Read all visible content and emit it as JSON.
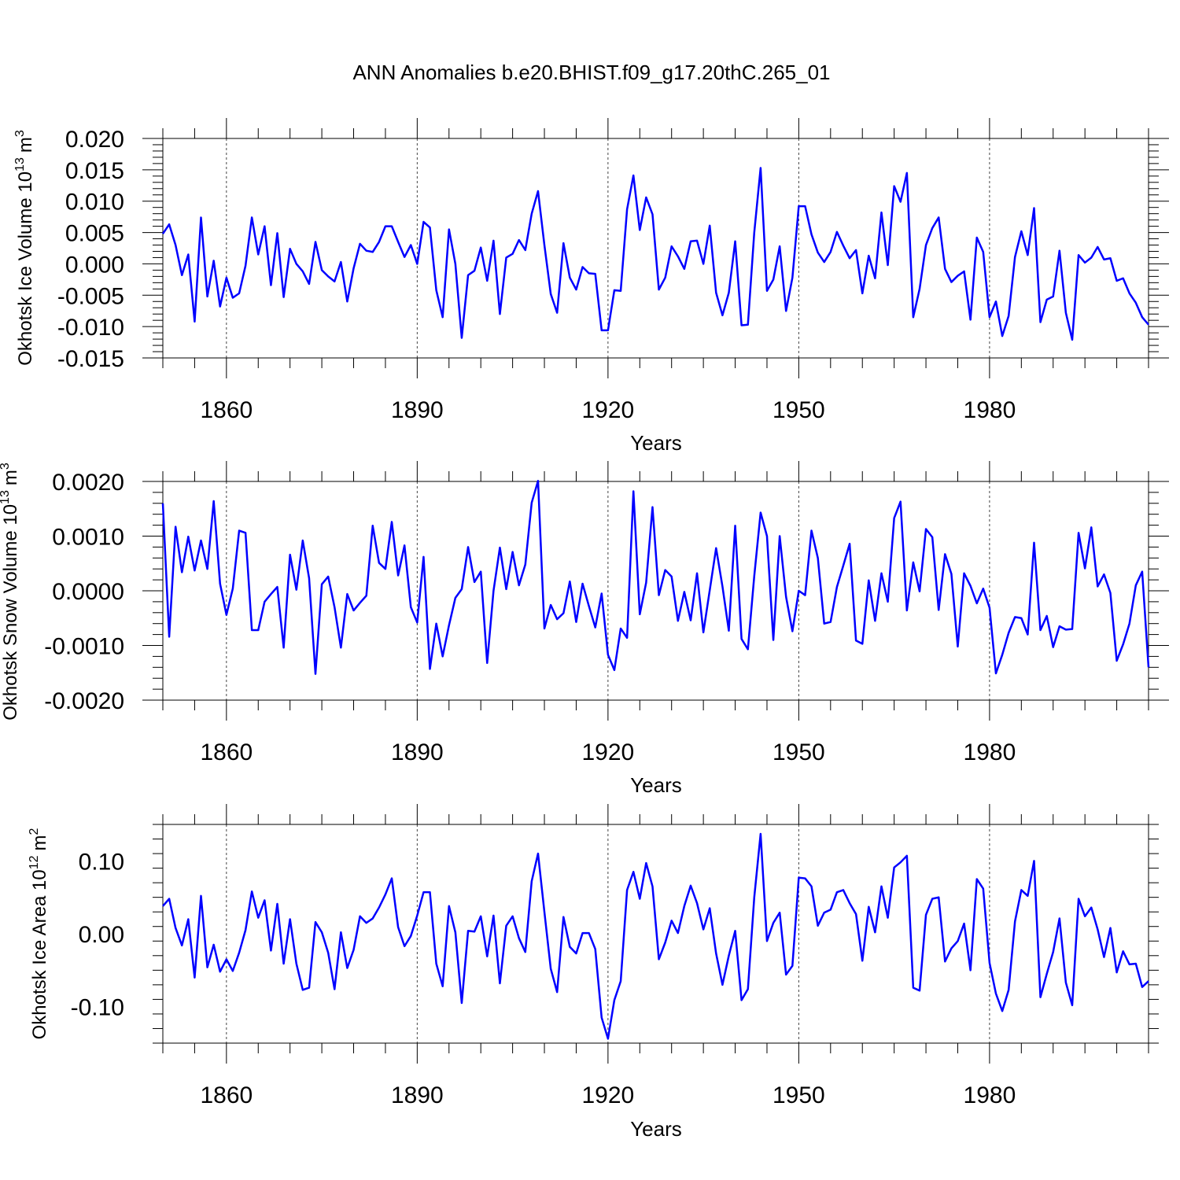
{
  "title": "ANN Anomalies b.e20.BHIST.f09_g17.20thC.265_01",
  "line_color": "#0000ff",
  "chart_data": [
    {
      "type": "line",
      "ylabel": "Okhotsk Ice Volume 10",
      "yunit_exp": "13",
      "yunit": "m",
      "yunit_pow": "3",
      "xlabel": "Years",
      "xlim": [
        1850,
        2005
      ],
      "ylim": [
        -0.015,
        0.02
      ],
      "ytick_values": [
        -0.015,
        -0.01,
        -0.005,
        0.0,
        0.005,
        0.01,
        0.015,
        0.02
      ],
      "ytick_labels": [
        "-0.015",
        "-0.010",
        "-0.005",
        "0.000",
        "0.005",
        "0.010",
        "0.015",
        "0.020"
      ],
      "xtick_values": [
        1860,
        1890,
        1920,
        1950,
        1980
      ],
      "xtick_labels": [
        "1860",
        "1890",
        "1920",
        "1950",
        "1980"
      ],
      "grid": "dashed vertical at major x ticks",
      "series": [
        {
          "name": "Okhotsk Ice Volume",
          "x_start": 1850,
          "values": [
            0.0048,
            0.0063,
            0.003,
            -0.0018,
            0.0015,
            -0.0092,
            0.0074,
            -0.0052,
            0.0005,
            -0.0068,
            -0.0022,
            -0.0054,
            -0.0047,
            -0.0003,
            0.0074,
            0.0015,
            0.006,
            -0.0034,
            0.0049,
            -0.0053,
            0.0024,
            0.0,
            -0.0012,
            -0.0032,
            0.0035,
            -0.001,
            -0.002,
            -0.0028,
            0.0003,
            -0.006,
            -0.0007,
            0.0032,
            0.0021,
            0.0019,
            0.0035,
            0.006,
            0.006,
            0.0035,
            0.0011,
            0.003,
            0.0,
            0.0067,
            0.0058,
            -0.0042,
            -0.0085,
            0.0055,
            0.0,
            -0.0118,
            -0.0018,
            -0.0011,
            0.0026,
            -0.0027,
            0.0037,
            -0.008,
            0.001,
            0.0016,
            0.0038,
            0.0022,
            0.008,
            0.0116,
            0.003,
            -0.0048,
            -0.0078,
            0.0033,
            -0.0022,
            -0.0041,
            -0.0005,
            -0.0015,
            -0.0016,
            -0.0106,
            -0.0106,
            -0.0042,
            -0.0043,
            0.0087,
            0.0141,
            0.0054,
            0.0106,
            0.0079,
            -0.0041,
            -0.0022,
            0.0028,
            0.0012,
            -0.0008,
            0.0036,
            0.0037,
            0.0,
            0.0061,
            -0.0046,
            -0.0082,
            -0.0046,
            0.0036,
            -0.0098,
            -0.0097,
            0.005,
            0.0153,
            -0.0043,
            -0.0025,
            0.0028,
            -0.0075,
            -0.0022,
            0.0092,
            0.0092,
            0.0047,
            0.0018,
            0.0003,
            0.0019,
            0.0051,
            0.0029,
            0.0009,
            0.0022,
            -0.0047,
            0.0013,
            -0.0023,
            0.0082,
            -0.0002,
            0.0124,
            0.0099,
            0.0145,
            -0.0085,
            -0.004,
            0.003,
            0.0057,
            0.0074,
            -0.0008,
            -0.0029,
            -0.0019,
            -0.0012,
            -0.0089,
            0.0042,
            0.0019,
            -0.0085,
            -0.006,
            -0.0115,
            -0.0083,
            0.0011,
            0.0052,
            0.0014,
            0.0089,
            -0.0093,
            -0.0057,
            -0.0052,
            0.0021,
            -0.0078,
            -0.0121,
            0.0014,
            0.0002,
            0.001,
            0.0027,
            0.0007,
            0.0009,
            -0.0027,
            -0.0023,
            -0.0047,
            -0.0062,
            -0.0085,
            -0.0097
          ]
        }
      ]
    },
    {
      "type": "line",
      "ylabel": "Okhotsk Snow Volume 10",
      "yunit_exp": "13",
      "yunit": "m",
      "yunit_pow": "3",
      "xlabel": "Years",
      "xlim": [
        1850,
        2005
      ],
      "ylim": [
        -0.002,
        0.002
      ],
      "ytick_values": [
        -0.002,
        -0.001,
        0.0,
        0.001,
        0.002
      ],
      "ytick_labels": [
        "-0.0020",
        "-0.0010",
        "0.0000",
        "0.0010",
        "0.0020"
      ],
      "xtick_values": [
        1860,
        1890,
        1920,
        1950,
        1980
      ],
      "xtick_labels": [
        "1860",
        "1890",
        "1920",
        "1950",
        "1980"
      ],
      "grid": "dashed vertical at major x ticks",
      "series": [
        {
          "name": "Okhotsk Snow Volume",
          "x_start": 1850,
          "values": [
            0.0016,
            -0.00084,
            0.00117,
            0.00034,
            0.00099,
            0.00037,
            0.00092,
            0.0004,
            0.00164,
            0.00013,
            -0.00044,
            4e-05,
            0.0011,
            0.00106,
            -0.00072,
            -0.00072,
            -0.0002,
            -6e-05,
            7e-05,
            -0.00104,
            0.00066,
            2e-05,
            0.00092,
            0.00023,
            -0.00152,
            0.00012,
            0.00026,
            -0.0003,
            -0.00104,
            -6e-05,
            -0.00036,
            -0.00022,
            -9e-05,
            0.00119,
            0.00051,
            0.0004,
            0.00126,
            0.00028,
            0.00083,
            -0.0003,
            -0.00058,
            0.00062,
            -0.00143,
            -0.0006,
            -0.0012,
            -0.00063,
            -0.00013,
            3e-05,
            0.0008,
            0.00016,
            0.00035,
            -0.00132,
            0.0,
            0.00079,
            3e-05,
            0.00071,
            0.0001,
            0.00048,
            0.00161,
            0.00201,
            -0.00069,
            -0.00026,
            -0.00052,
            -0.00041,
            0.00017,
            -0.00057,
            0.00013,
            -0.00028,
            -0.00067,
            -5e-05,
            -0.00117,
            -0.00145,
            -0.00069,
            -0.00086,
            0.00182,
            -0.00043,
            0.00015,
            0.00153,
            -8e-05,
            0.00038,
            0.00026,
            -0.00055,
            -2e-05,
            -0.00054,
            0.00032,
            -0.00076,
            1e-05,
            0.00078,
            8e-05,
            -0.00073,
            0.00119,
            -0.00088,
            -0.00107,
            0.00027,
            0.00143,
            0.001,
            -0.0009,
            0.001,
            -0.00011,
            -0.00074,
            0.0,
            -8e-05,
            0.0011,
            0.0006,
            -0.0006,
            -0.00057,
            7e-05,
            0.00046,
            0.00086,
            -0.00091,
            -0.00097,
            0.00019,
            -0.00055,
            0.00032,
            -0.0002,
            0.00133,
            0.00163,
            -0.00036,
            0.00052,
            -1e-05,
            0.00113,
            0.00098,
            -0.00035,
            0.00067,
            0.00031,
            -0.00102,
            0.00032,
            9e-05,
            -0.00023,
            4e-05,
            -0.00031,
            -0.00151,
            -0.00117,
            -0.00077,
            -0.00048,
            -0.0005,
            -0.0008,
            0.00088,
            -0.00072,
            -0.00046,
            -0.00103,
            -0.00065,
            -0.00071,
            -0.0007,
            0.00106,
            0.00041,
            0.00116,
            8e-05,
            0.0003,
            -4e-05,
            -0.00128,
            -0.00098,
            -0.0006,
            0.0001,
            0.00035,
            -0.0014
          ]
        }
      ]
    },
    {
      "type": "line",
      "ylabel": "Okhotsk Ice Area 10",
      "yunit_exp": "12",
      "yunit": "m",
      "yunit_pow": "2",
      "xlabel": "Years",
      "xlim": [
        1850,
        2005
      ],
      "ylim": [
        -0.15,
        0.15
      ],
      "ytick_values": [
        -0.1,
        0.0,
        0.1
      ],
      "ytick_labels": [
        "-0.10",
        "0.00",
        "0.10"
      ],
      "xtick_values": [
        1860,
        1890,
        1920,
        1950,
        1980
      ],
      "xtick_labels": [
        "1860",
        "1890",
        "1920",
        "1950",
        "1980"
      ],
      "grid": "dashed vertical at major x ticks",
      "series": [
        {
          "name": "Okhotsk Ice Area",
          "x_start": 1850,
          "values": [
            0.038,
            0.048,
            0.008,
            -0.016,
            0.02,
            -0.06,
            0.052,
            -0.046,
            -0.015,
            -0.052,
            -0.035,
            -0.051,
            -0.026,
            0.005,
            0.058,
            0.022,
            0.046,
            -0.023,
            0.041,
            -0.041,
            0.02,
            -0.041,
            -0.077,
            -0.074,
            0.016,
            0.002,
            -0.026,
            -0.076,
            0.002,
            -0.047,
            -0.022,
            0.024,
            0.015,
            0.021,
            0.036,
            0.054,
            0.076,
            0.009,
            -0.017,
            -0.003,
            0.025,
            0.057,
            0.057,
            -0.041,
            -0.072,
            0.038,
            0.002,
            -0.095,
            0.004,
            0.003,
            0.024,
            -0.031,
            0.025,
            -0.068,
            0.011,
            0.024,
            -0.006,
            -0.025,
            0.072,
            0.11,
            0.03,
            -0.048,
            -0.08,
            0.023,
            -0.018,
            -0.027,
            0.001,
            0.001,
            -0.021,
            -0.115,
            -0.144,
            -0.091,
            -0.065,
            0.06,
            0.085,
            0.048,
            0.097,
            0.065,
            -0.035,
            -0.012,
            0.018,
            0.001,
            0.038,
            0.066,
            0.042,
            0.006,
            0.035,
            -0.027,
            -0.07,
            -0.03,
            0.004,
            -0.091,
            -0.076,
            0.05,
            0.137,
            -0.01,
            0.015,
            0.029,
            -0.056,
            -0.044,
            0.077,
            0.076,
            0.065,
            0.011,
            0.029,
            0.033,
            0.057,
            0.06,
            0.042,
            0.027,
            -0.037,
            0.037,
            0.002,
            0.065,
            0.022,
            0.091,
            0.098,
            0.107,
            -0.074,
            -0.078,
            0.026,
            0.048,
            0.05,
            -0.038,
            -0.02,
            -0.01,
            0.014,
            -0.05,
            0.075,
            0.062,
            -0.04,
            -0.082,
            -0.106,
            -0.077,
            0.017,
            0.06,
            0.052,
            0.1,
            -0.087,
            -0.055,
            -0.025,
            0.021,
            -0.067,
            -0.098,
            0.048,
            0.024,
            0.036,
            0.006,
            -0.032,
            0.008,
            -0.053,
            -0.024,
            -0.042,
            -0.041,
            -0.073,
            -0.065
          ]
        }
      ]
    }
  ]
}
